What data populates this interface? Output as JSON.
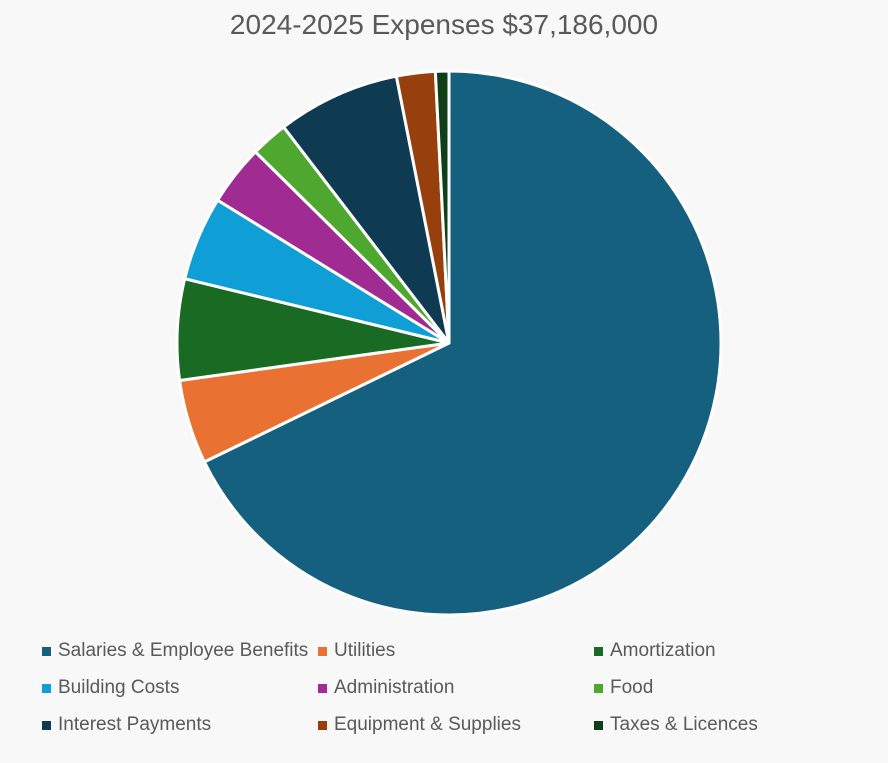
{
  "chart_data": {
    "type": "pie",
    "title": "2024-2025 Expenses $37,186,000",
    "total": 37186000,
    "legend_position": "bottom",
    "slices": [
      {
        "label": "Salaries & Employee Benefits",
        "percent": 67.8,
        "color": "#16607f"
      },
      {
        "label": "Utilities",
        "percent": 5.0,
        "color": "#e97132"
      },
      {
        "label": "Amortization",
        "percent": 6.0,
        "color": "#196b24"
      },
      {
        "label": "Building Costs",
        "percent": 5.0,
        "color": "#0f9ed5"
      },
      {
        "label": "Administration",
        "percent": 3.6,
        "color": "#a02b93"
      },
      {
        "label": "Food",
        "percent": 2.2,
        "color": "#4ea72e"
      },
      {
        "label": "Interest Payments",
        "percent": 7.3,
        "color": "#0e3a52"
      },
      {
        "label": "Equipment & Supplies",
        "percent": 2.3,
        "color": "#97400d"
      },
      {
        "label": "Taxes & Licences",
        "percent": 0.8,
        "color": "#0f3f18"
      }
    ]
  }
}
